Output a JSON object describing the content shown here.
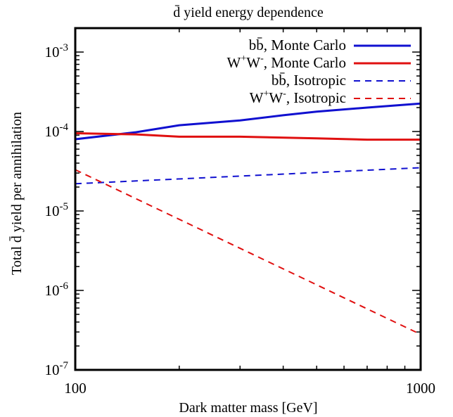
{
  "chart_data": {
    "type": "line",
    "title": "d̄ yield energy dependence",
    "xlabel": "Dark matter mass [GeV]",
    "ylabel": "Total d̄ yield per annihilation",
    "xscale": "log",
    "yscale": "log",
    "xlim": [
      100,
      1000
    ],
    "ylim": [
      1e-07,
      0.002
    ],
    "x_ticks": [
      {
        "value": 100,
        "label": "100"
      },
      {
        "value": 1000,
        "label": "1000"
      }
    ],
    "y_ticks": [
      {
        "value": 1e-07,
        "base": "10",
        "exp": "-7"
      },
      {
        "value": 1e-06,
        "base": "10",
        "exp": "-6"
      },
      {
        "value": 1e-05,
        "base": "10",
        "exp": "-5"
      },
      {
        "value": 0.0001,
        "base": "10",
        "exp": "-4"
      },
      {
        "value": 0.001,
        "base": "10",
        "exp": "-3"
      }
    ],
    "grid": false,
    "legend_position": "top-right",
    "series": [
      {
        "name": "bb̄, Monte Carlo",
        "label_main": "bb̄",
        "label_sup_a": "",
        "label_mid": "",
        "label_sup_b": "",
        "label_rest": ", Monte Carlo",
        "color": "#1010d0",
        "dash": "solid",
        "x": [
          100,
          150,
          200,
          300,
          400,
          500,
          700,
          1000
        ],
        "y": [
          8e-05,
          9.8e-05,
          0.00012,
          0.000138,
          0.00016,
          0.000178,
          0.0002,
          0.000225
        ]
      },
      {
        "name": "W+W-, Monte Carlo",
        "label_main": "W",
        "label_sup_a": "+",
        "label_mid": "W",
        "label_sup_b": "-",
        "label_rest": ", Monte Carlo",
        "color": "#e01010",
        "dash": "solid",
        "x": [
          100,
          150,
          200,
          300,
          500,
          700,
          1000
        ],
        "y": [
          9.5e-05,
          9.2e-05,
          8.6e-05,
          8.6e-05,
          8.2e-05,
          7.9e-05,
          7.9e-05
        ]
      },
      {
        "name": "bb̄, Isotropic",
        "label_main": "bb̄",
        "label_sup_a": "",
        "label_mid": "",
        "label_sup_b": "",
        "label_rest": ", Isotropic",
        "color": "#1010d0",
        "dash": "dashed",
        "x": [
          100,
          1000
        ],
        "y": [
          2.2e-05,
          3.5e-05
        ]
      },
      {
        "name": "W+W-, Isotropic",
        "label_main": "W",
        "label_sup_a": "+",
        "label_mid": "W",
        "label_sup_b": "-",
        "label_rest": ", Isotropic",
        "color": "#e01010",
        "dash": "dashed",
        "x": [
          100,
          1000
        ],
        "y": [
          3.3e-05,
          2.8e-07
        ]
      }
    ]
  }
}
